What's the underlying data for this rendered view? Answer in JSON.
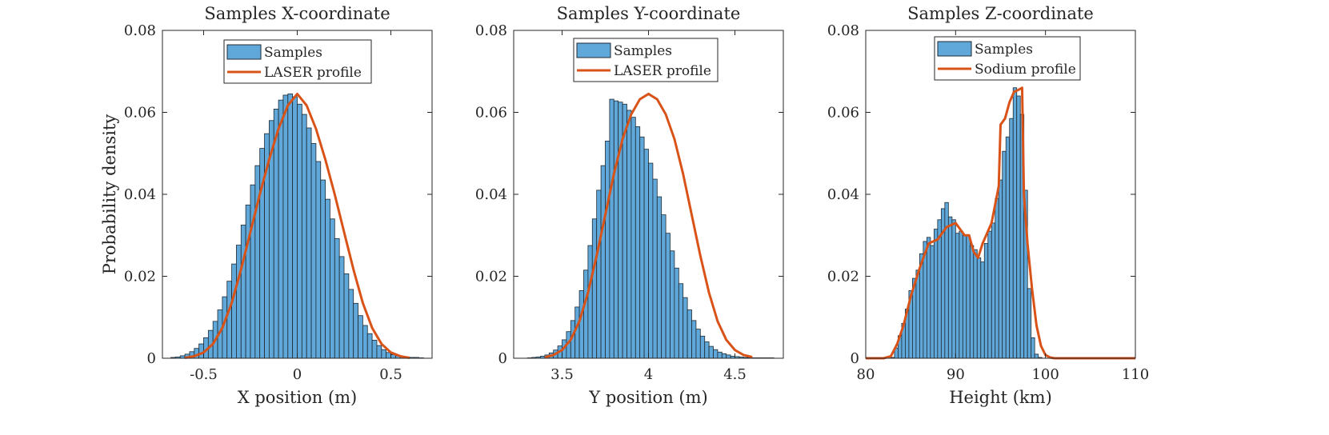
{
  "colors": {
    "bar_fill": "#5fa8d9",
    "bar_edge": "#1f2a33",
    "curve": "#d95319",
    "axis": "#262626"
  },
  "chart_data": [
    {
      "type": "bar",
      "title": "Samples X-coordinate",
      "xlabel": "X position (m)",
      "ylabel": "Probability density",
      "xlim": [
        -0.72,
        0.72
      ],
      "ylim": [
        0,
        0.08
      ],
      "xticks": [
        -0.5,
        0,
        0.5
      ],
      "xtick_labels": [
        "-0.5",
        "0",
        "0.5"
      ],
      "yticks": [
        0,
        0.02,
        0.04,
        0.06,
        0.08
      ],
      "ytick_labels": [
        "0",
        "0.02",
        "0.04",
        "0.06",
        "0.08"
      ],
      "legend": {
        "location": "top-center",
        "entries": [
          "Samples",
          "LASER profile"
        ]
      },
      "bins": {
        "start": -0.675,
        "width": 0.025
      },
      "histogram": [
        0.0002,
        0.0003,
        0.0006,
        0.001,
        0.0016,
        0.0024,
        0.0035,
        0.005,
        0.0068,
        0.009,
        0.0118,
        0.015,
        0.0188,
        0.023,
        0.0276,
        0.0325,
        0.0374,
        0.0423,
        0.047,
        0.0512,
        0.0548,
        0.058,
        0.0608,
        0.063,
        0.0642,
        0.0645,
        0.0638,
        0.062,
        0.0595,
        0.0562,
        0.0524,
        0.048,
        0.0435,
        0.0388,
        0.034,
        0.0292,
        0.0248,
        0.0206,
        0.0168,
        0.0134,
        0.0104,
        0.008,
        0.006,
        0.0044,
        0.0031,
        0.0021,
        0.0014,
        0.0009,
        0.0006,
        0.0004,
        0.0003,
        0.0002,
        0.0002,
        0.0001
      ],
      "series": [
        {
          "name": "Samples",
          "kind": "histogram"
        },
        {
          "name": "LASER profile",
          "kind": "line",
          "x": [
            -0.6,
            -0.55,
            -0.5,
            -0.45,
            -0.4,
            -0.35,
            -0.3,
            -0.25,
            -0.2,
            -0.15,
            -0.1,
            -0.05,
            0.0,
            0.05,
            0.1,
            0.15,
            0.2,
            0.25,
            0.3,
            0.35,
            0.4,
            0.45,
            0.5,
            0.55,
            0.6
          ],
          "y": [
            0.0001,
            0.0005,
            0.0014,
            0.0035,
            0.0074,
            0.0135,
            0.0217,
            0.0308,
            0.04,
            0.0485,
            0.056,
            0.0617,
            0.0645,
            0.0617,
            0.056,
            0.0485,
            0.04,
            0.0308,
            0.0217,
            0.0135,
            0.0074,
            0.0035,
            0.0014,
            0.0005,
            0.0001
          ]
        }
      ]
    },
    {
      "type": "bar",
      "title": "Samples Y-coordinate",
      "xlabel": "Y position (m)",
      "ylabel": "",
      "xlim": [
        3.22,
        4.78
      ],
      "ylim": [
        0,
        0.08
      ],
      "xticks": [
        3.5,
        4,
        4.5
      ],
      "xtick_labels": [
        "3.5",
        "4",
        "4.5"
      ],
      "yticks": [
        0,
        0.02,
        0.04,
        0.06,
        0.08
      ],
      "ytick_labels": [
        "0",
        "0.02",
        "0.04",
        "0.06",
        "0.08"
      ],
      "legend": {
        "location": "top-center",
        "entries": [
          "Samples",
          "LASER profile"
        ]
      },
      "bins": {
        "start": 3.3,
        "width": 0.025
      },
      "histogram": [
        0.0001,
        0.0002,
        0.0003,
        0.0005,
        0.0008,
        0.0013,
        0.002,
        0.003,
        0.0045,
        0.0065,
        0.0092,
        0.0125,
        0.0165,
        0.0215,
        0.0275,
        0.034,
        0.041,
        0.047,
        0.053,
        0.0632,
        0.0628,
        0.0625,
        0.062,
        0.0605,
        0.0588,
        0.0565,
        0.054,
        0.051,
        0.0476,
        0.0437,
        0.0394,
        0.035,
        0.0305,
        0.0262,
        0.022,
        0.0182,
        0.0148,
        0.0118,
        0.0092,
        0.0071,
        0.0054,
        0.004,
        0.0029,
        0.0021,
        0.0015,
        0.0011,
        0.0008,
        0.0005,
        0.0004,
        0.0003,
        0.0002,
        0.0002,
        0.0001,
        0.0001,
        0.0001,
        0.0001,
        0.0001
      ],
      "series": [
        {
          "name": "Samples",
          "kind": "histogram"
        },
        {
          "name": "LASER profile",
          "kind": "line",
          "x": [
            3.4,
            3.45,
            3.5,
            3.55,
            3.6,
            3.65,
            3.7,
            3.75,
            3.8,
            3.85,
            3.9,
            3.95,
            4.0,
            4.05,
            4.1,
            4.15,
            4.2,
            4.25,
            4.3,
            4.35,
            4.4,
            4.45,
            4.5,
            4.55,
            4.6
          ],
          "y": [
            0.0002,
            0.0008,
            0.002,
            0.0045,
            0.009,
            0.016,
            0.025,
            0.035,
            0.045,
            0.0535,
            0.0595,
            0.0632,
            0.0645,
            0.0632,
            0.0595,
            0.0535,
            0.045,
            0.035,
            0.025,
            0.016,
            0.009,
            0.0045,
            0.002,
            0.0008,
            0.0003
          ]
        }
      ]
    },
    {
      "type": "bar",
      "title": "Samples Z-coordinate",
      "xlabel": "Height (km)",
      "ylabel": "",
      "xlim": [
        80,
        110
      ],
      "ylim": [
        0,
        0.08
      ],
      "xticks": [
        80,
        90,
        100,
        110
      ],
      "xtick_labels": [
        "80",
        "90",
        "100",
        "110"
      ],
      "yticks": [
        0,
        0.02,
        0.04,
        0.06,
        0.08
      ],
      "ytick_labels": [
        "0",
        "0.02",
        "0.04",
        "0.06",
        "0.08"
      ],
      "legend": {
        "location": "top-center",
        "entries": [
          "Samples",
          "Sodium profile"
        ]
      },
      "bins": {
        "start": 82.8,
        "width": 0.4
      },
      "histogram": [
        0.0002,
        0.0025,
        0.0055,
        0.0085,
        0.012,
        0.0165,
        0.0195,
        0.0215,
        0.0255,
        0.0285,
        0.0295,
        0.0275,
        0.0315,
        0.0338,
        0.0365,
        0.038,
        0.0345,
        0.0338,
        0.0305,
        0.031,
        0.03,
        0.03,
        0.0275,
        0.0265,
        0.0245,
        0.0235,
        0.028,
        0.031,
        0.033,
        0.039,
        0.0435,
        0.0505,
        0.054,
        0.0585,
        0.066,
        0.064,
        0.0595,
        0.041,
        0.017,
        0.005,
        0.001,
        0.0002
      ],
      "series": [
        {
          "name": "Samples",
          "kind": "histogram"
        },
        {
          "name": "Sodium profile",
          "kind": "line",
          "x": [
            80,
            82,
            82.8,
            83.5,
            84.2,
            85,
            86,
            87,
            88,
            89,
            90,
            91,
            91.5,
            92,
            92.5,
            93,
            94,
            94.8,
            95,
            95.5,
            96,
            96.5,
            97,
            97.4,
            97.6,
            98,
            98.5,
            99,
            99.5,
            100,
            100.5,
            101,
            102,
            105,
            110
          ],
          "y": [
            0,
            0,
            0.0005,
            0.0035,
            0.008,
            0.015,
            0.022,
            0.028,
            0.029,
            0.032,
            0.033,
            0.03,
            0.03,
            0.026,
            0.0245,
            0.028,
            0.033,
            0.042,
            0.057,
            0.0585,
            0.0625,
            0.065,
            0.0655,
            0.066,
            0.04,
            0.028,
            0.017,
            0.008,
            0.003,
            0.0008,
            0.0002,
            0,
            0,
            0,
            0
          ]
        }
      ]
    }
  ]
}
